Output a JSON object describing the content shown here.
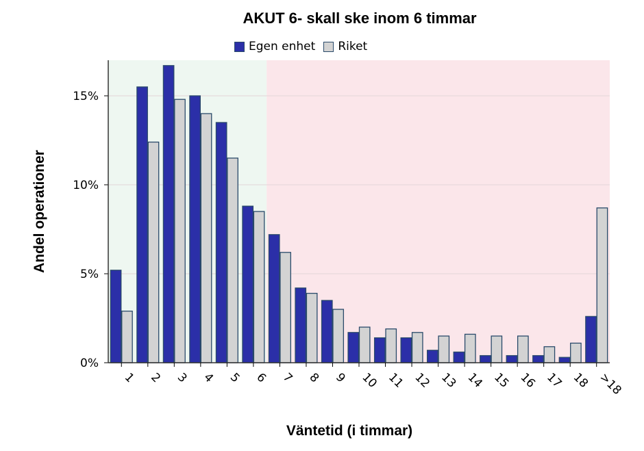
{
  "chart_data": {
    "type": "bar",
    "title": "AKUT 6- skall ske inom 6 timmar",
    "xlabel": "Väntetid (i timmar)",
    "ylabel": "Andel operationer",
    "categories": [
      "1",
      "2",
      "3",
      "4",
      "5",
      "6",
      "7",
      "8",
      "9",
      "10",
      "11",
      "12",
      "13",
      "14",
      "15",
      "16",
      "17",
      "18",
      ">18"
    ],
    "series": [
      {
        "name": "Egen enhet",
        "color": "#2b2fa8",
        "values": [
          5.2,
          15.5,
          16.7,
          15.0,
          13.5,
          8.8,
          7.2,
          4.2,
          3.5,
          1.7,
          1.4,
          1.4,
          0.7,
          0.6,
          0.4,
          0.4,
          0.4,
          0.3,
          2.6
        ]
      },
      {
        "name": "Riket",
        "color": "#d3d3d3",
        "values": [
          2.9,
          12.4,
          14.8,
          14.0,
          11.5,
          8.5,
          6.2,
          3.9,
          3.0,
          2.0,
          1.9,
          1.7,
          1.5,
          1.6,
          1.5,
          1.5,
          0.9,
          1.1,
          8.7
        ]
      }
    ],
    "yticks": [
      0,
      5,
      10,
      15
    ],
    "ytick_labels": [
      "0%",
      "5%",
      "10%",
      "15%"
    ],
    "ylim": [
      0,
      17
    ],
    "grid": true,
    "legend_position": "top",
    "background_zones": [
      {
        "from_category": "1",
        "to_category": "6",
        "color": "#eef7f1"
      },
      {
        "from_category": "7",
        "to_category": ">18",
        "color": "#fbe6ea"
      }
    ]
  }
}
